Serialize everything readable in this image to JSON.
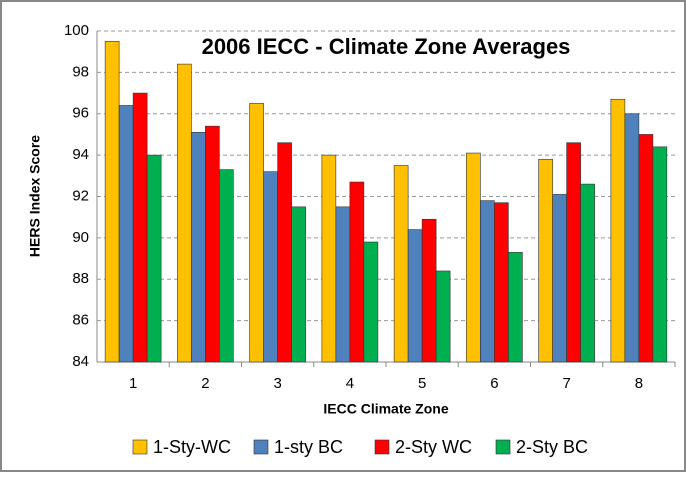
{
  "chart_data": {
    "type": "bar",
    "title": "2006 IECC - Climate Zone Averages",
    "x_label": "IECC Climate Zone",
    "y_label": "HERS Index Score",
    "categories": [
      "1",
      "2",
      "3",
      "4",
      "5",
      "6",
      "7",
      "8"
    ],
    "series": [
      {
        "name": "1-Sty-WC",
        "color": "#ffc000",
        "values": [
          99.5,
          98.4,
          96.5,
          94.0,
          93.5,
          94.1,
          93.8,
          96.7
        ]
      },
      {
        "name": "1-sty BC",
        "color": "#4f81bd",
        "values": [
          96.4,
          95.1,
          93.2,
          91.5,
          90.4,
          91.8,
          92.1,
          96.0
        ]
      },
      {
        "name": "2-Sty WC",
        "color": "#ff0000",
        "values": [
          97.0,
          95.4,
          94.6,
          92.7,
          90.9,
          91.7,
          94.6,
          95.0
        ]
      },
      {
        "name": "2-Sty BC",
        "color": "#00b050",
        "values": [
          94.0,
          93.3,
          91.5,
          89.8,
          88.4,
          89.3,
          92.6,
          94.4
        ]
      }
    ],
    "ylim": [
      84,
      100
    ],
    "yticks": [
      84,
      86,
      88,
      90,
      92,
      94,
      96,
      98,
      100
    ],
    "grid": true,
    "legend": "bottom"
  }
}
